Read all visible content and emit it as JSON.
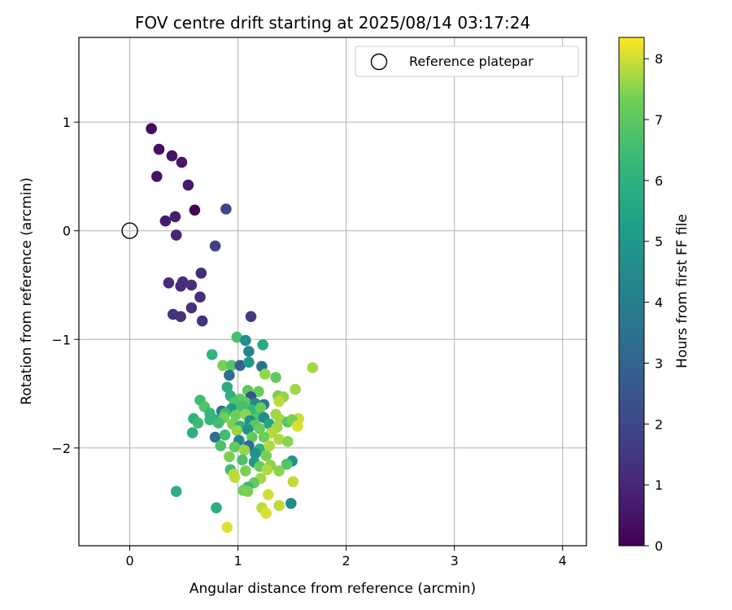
{
  "chart_data": {
    "type": "scatter",
    "title": "FOV centre drift starting at 2025/08/14 03:17:24",
    "xlabel": "Angular distance from reference (arcmin)",
    "ylabel": "Rotation from reference (arcmin)",
    "xlim": [
      -0.47,
      4.22
    ],
    "ylim": [
      -2.9,
      1.78
    ],
    "xticks": [
      0,
      1,
      2,
      3,
      4
    ],
    "yticks": [
      1,
      0,
      -1,
      -2
    ],
    "xtick_labels": [
      "0",
      "1",
      "2",
      "3",
      "4"
    ],
    "ytick_labels": [
      "1",
      "0",
      "−1",
      "−2"
    ],
    "grid": true,
    "legend": {
      "position": "top-right",
      "label": "Reference platepar",
      "marker": "open-circle"
    },
    "reference_point": {
      "x": 0,
      "y": 0
    },
    "colorbar": {
      "label": "Hours from first FF file",
      "colormap": "viridis",
      "range": [
        0,
        8.35
      ],
      "ticks": [
        0,
        1,
        2,
        3,
        4,
        5,
        6,
        7,
        8
      ],
      "tick_labels": [
        "0",
        "1",
        "2",
        "3",
        "4",
        "5",
        "6",
        "7",
        "8"
      ]
    },
    "points": [
      {
        "x": 0.2,
        "y": 0.94,
        "h": 0.3
      },
      {
        "x": 0.27,
        "y": 0.75,
        "h": 0.4
      },
      {
        "x": 0.39,
        "y": 0.69,
        "h": 0.5
      },
      {
        "x": 0.48,
        "y": 0.63,
        "h": 0.6
      },
      {
        "x": 0.25,
        "y": 0.5,
        "h": 0.5
      },
      {
        "x": 0.54,
        "y": 0.42,
        "h": 0.7
      },
      {
        "x": 0.6,
        "y": 0.19,
        "h": 0.1
      },
      {
        "x": 0.42,
        "y": 0.13,
        "h": 0.8
      },
      {
        "x": 0.33,
        "y": 0.09,
        "h": 0.7
      },
      {
        "x": 0.89,
        "y": 0.2,
        "h": 2.0
      },
      {
        "x": 0.43,
        "y": -0.04,
        "h": 1.0
      },
      {
        "x": 0.79,
        "y": -0.14,
        "h": 1.8
      },
      {
        "x": 0.66,
        "y": -0.39,
        "h": 1.2
      },
      {
        "x": 0.36,
        "y": -0.48,
        "h": 1.1
      },
      {
        "x": 0.49,
        "y": -0.47,
        "h": 1.3
      },
      {
        "x": 0.57,
        "y": -0.5,
        "h": 1.2
      },
      {
        "x": 0.47,
        "y": -0.51,
        "h": 1.2
      },
      {
        "x": 0.65,
        "y": -0.61,
        "h": 1.2
      },
      {
        "x": 0.57,
        "y": -0.71,
        "h": 1.3
      },
      {
        "x": 0.4,
        "y": -0.77,
        "h": 1.4
      },
      {
        "x": 0.47,
        "y": -0.79,
        "h": 1.4
      },
      {
        "x": 0.67,
        "y": -0.83,
        "h": 1.4
      },
      {
        "x": 1.12,
        "y": -0.79,
        "h": 1.7
      },
      {
        "x": 0.99,
        "y": -0.98,
        "h": 6.6
      },
      {
        "x": 1.07,
        "y": -1.01,
        "h": 4.5
      },
      {
        "x": 1.23,
        "y": -1.05,
        "h": 5.8
      },
      {
        "x": 1.1,
        "y": -1.11,
        "h": 4.2
      },
      {
        "x": 0.76,
        "y": -1.14,
        "h": 6.1
      },
      {
        "x": 0.86,
        "y": -1.24,
        "h": 7.4
      },
      {
        "x": 0.94,
        "y": -1.24,
        "h": 6.9
      },
      {
        "x": 1.02,
        "y": -1.24,
        "h": 2.9
      },
      {
        "x": 1.1,
        "y": -1.21,
        "h": 5.2
      },
      {
        "x": 1.22,
        "y": -1.25,
        "h": 3.6
      },
      {
        "x": 1.69,
        "y": -1.26,
        "h": 7.7
      },
      {
        "x": 0.92,
        "y": -1.33,
        "h": 3.5
      },
      {
        "x": 1.25,
        "y": -1.32,
        "h": 7.6
      },
      {
        "x": 1.35,
        "y": -1.35,
        "h": 7.1
      },
      {
        "x": 0.9,
        "y": -1.44,
        "h": 5.8
      },
      {
        "x": 1.09,
        "y": -1.47,
        "h": 7.0
      },
      {
        "x": 1.19,
        "y": -1.48,
        "h": 7.2
      },
      {
        "x": 1.53,
        "y": -1.46,
        "h": 7.7
      },
      {
        "x": 0.93,
        "y": -1.52,
        "h": 6.0
      },
      {
        "x": 1.02,
        "y": -1.55,
        "h": 7.1
      },
      {
        "x": 1.12,
        "y": -1.53,
        "h": 2.4
      },
      {
        "x": 1.37,
        "y": -1.52,
        "h": 7.4
      },
      {
        "x": 1.42,
        "y": -1.53,
        "h": 7.6
      },
      {
        "x": 0.65,
        "y": -1.56,
        "h": 6.5
      },
      {
        "x": 0.97,
        "y": -1.58,
        "h": 6.8
      },
      {
        "x": 1.07,
        "y": -1.58,
        "h": 7.0
      },
      {
        "x": 1.16,
        "y": -1.59,
        "h": 4.5
      },
      {
        "x": 1.24,
        "y": -1.6,
        "h": 3.8
      },
      {
        "x": 1.38,
        "y": -1.57,
        "h": 7.9
      },
      {
        "x": 0.69,
        "y": -1.62,
        "h": 6.8
      },
      {
        "x": 0.85,
        "y": -1.66,
        "h": 3.6
      },
      {
        "x": 0.94,
        "y": -1.64,
        "h": 5.2
      },
      {
        "x": 1.04,
        "y": -1.62,
        "h": 6.6
      },
      {
        "x": 1.13,
        "y": -1.65,
        "h": 6.3
      },
      {
        "x": 1.21,
        "y": -1.63,
        "h": 7.2
      },
      {
        "x": 0.74,
        "y": -1.68,
        "h": 6.2
      },
      {
        "x": 0.88,
        "y": -1.68,
        "h": 6.4
      },
      {
        "x": 0.98,
        "y": -1.7,
        "h": 7.3
      },
      {
        "x": 1.07,
        "y": -1.69,
        "h": 7.5
      },
      {
        "x": 1.18,
        "y": -1.72,
        "h": 6.7
      },
      {
        "x": 1.35,
        "y": -1.69,
        "h": 7.7
      },
      {
        "x": 0.59,
        "y": -1.73,
        "h": 6.0
      },
      {
        "x": 0.79,
        "y": -1.74,
        "h": 6.0
      },
      {
        "x": 0.87,
        "y": -1.72,
        "h": 7.3
      },
      {
        "x": 1.11,
        "y": -1.75,
        "h": 4.7
      },
      {
        "x": 1.24,
        "y": -1.72,
        "h": 4.5
      },
      {
        "x": 1.39,
        "y": -1.74,
        "h": 7.7
      },
      {
        "x": 1.46,
        "y": -1.76,
        "h": 6.9
      },
      {
        "x": 1.56,
        "y": -1.73,
        "h": 8.0
      },
      {
        "x": 1.5,
        "y": -1.74,
        "h": 7.4
      },
      {
        "x": 0.63,
        "y": -1.77,
        "h": 6.4
      },
      {
        "x": 0.74,
        "y": -1.74,
        "h": 6.2
      },
      {
        "x": 0.82,
        "y": -1.77,
        "h": 6.5
      },
      {
        "x": 0.95,
        "y": -1.78,
        "h": 7.4
      },
      {
        "x": 1.02,
        "y": -1.8,
        "h": 6.0
      },
      {
        "x": 1.15,
        "y": -1.79,
        "h": 6.9
      },
      {
        "x": 1.29,
        "y": -1.78,
        "h": 5.5
      },
      {
        "x": 1.36,
        "y": -1.81,
        "h": 7.7
      },
      {
        "x": 1.55,
        "y": -1.8,
        "h": 8.1
      },
      {
        "x": 0.99,
        "y": -1.84,
        "h": 7.6
      },
      {
        "x": 1.09,
        "y": -1.83,
        "h": 4.7
      },
      {
        "x": 1.2,
        "y": -1.82,
        "h": 7.2
      },
      {
        "x": 1.31,
        "y": -1.86,
        "h": 7.8
      },
      {
        "x": 0.58,
        "y": -1.86,
        "h": 5.9
      },
      {
        "x": 0.79,
        "y": -1.9,
        "h": 3.5
      },
      {
        "x": 0.88,
        "y": -1.88,
        "h": 6.5
      },
      {
        "x": 1.01,
        "y": -1.93,
        "h": 4.3
      },
      {
        "x": 1.13,
        "y": -1.9,
        "h": 7.1
      },
      {
        "x": 1.24,
        "y": -1.9,
        "h": 7.3
      },
      {
        "x": 1.38,
        "y": -1.92,
        "h": 7.8
      },
      {
        "x": 1.46,
        "y": -1.94,
        "h": 7.5
      },
      {
        "x": 0.84,
        "y": -1.98,
        "h": 6.7
      },
      {
        "x": 0.97,
        "y": -1.99,
        "h": 7.1
      },
      {
        "x": 1.1,
        "y": -1.98,
        "h": 3.4
      },
      {
        "x": 1.2,
        "y": -2.01,
        "h": 6.0
      },
      {
        "x": 1.29,
        "y": -1.98,
        "h": 7.8
      },
      {
        "x": 1.06,
        "y": -2.02,
        "h": 7.6
      },
      {
        "x": 1.16,
        "y": -2.05,
        "h": 4.7
      },
      {
        "x": 1.26,
        "y": -2.07,
        "h": 7.4
      },
      {
        "x": 0.92,
        "y": -2.08,
        "h": 7.4
      },
      {
        "x": 1.04,
        "y": -2.11,
        "h": 6.7
      },
      {
        "x": 1.15,
        "y": -2.13,
        "h": 5.0
      },
      {
        "x": 1.5,
        "y": -2.12,
        "h": 4.8
      },
      {
        "x": 1.3,
        "y": -2.16,
        "h": 7.5
      },
      {
        "x": 1.45,
        "y": -2.15,
        "h": 6.8
      },
      {
        "x": 0.93,
        "y": -2.2,
        "h": 6.4
      },
      {
        "x": 1.07,
        "y": -2.21,
        "h": 7.4
      },
      {
        "x": 1.2,
        "y": -2.17,
        "h": 7.2
      },
      {
        "x": 1.38,
        "y": -2.21,
        "h": 7.5
      },
      {
        "x": 0.96,
        "y": -2.24,
        "h": 7.8
      },
      {
        "x": 1.27,
        "y": -2.2,
        "h": 7.8
      },
      {
        "x": 0.97,
        "y": -2.27,
        "h": 7.9
      },
      {
        "x": 1.21,
        "y": -2.28,
        "h": 7.7
      },
      {
        "x": 1.15,
        "y": -2.32,
        "h": 7.1
      },
      {
        "x": 1.51,
        "y": -2.31,
        "h": 7.9
      },
      {
        "x": 1.09,
        "y": -2.36,
        "h": 6.4
      },
      {
        "x": 1.05,
        "y": -2.39,
        "h": 7.3
      },
      {
        "x": 0.43,
        "y": -2.4,
        "h": 5.9
      },
      {
        "x": 1.09,
        "y": -2.4,
        "h": 7.4
      },
      {
        "x": 1.28,
        "y": -2.43,
        "h": 8.0
      },
      {
        "x": 1.49,
        "y": -2.51,
        "h": 4.5
      },
      {
        "x": 1.38,
        "y": -2.53,
        "h": 7.9
      },
      {
        "x": 0.8,
        "y": -2.55,
        "h": 5.9
      },
      {
        "x": 1.22,
        "y": -2.55,
        "h": 7.9
      },
      {
        "x": 1.26,
        "y": -2.6,
        "h": 8.1
      },
      {
        "x": 0.9,
        "y": -2.73,
        "h": 8.1
      }
    ]
  }
}
